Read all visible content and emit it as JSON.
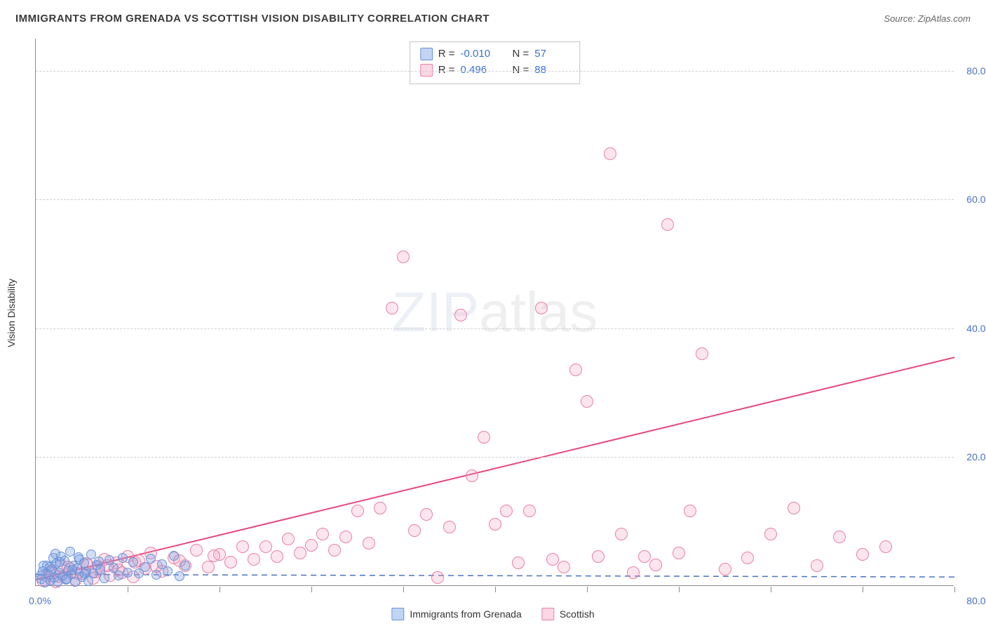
{
  "header": {
    "title": "IMMIGRANTS FROM GRENADA VS SCOTTISH VISION DISABILITY CORRELATION CHART",
    "source_prefix": "Source: ",
    "source_name": "ZipAtlas.com"
  },
  "watermark": {
    "part1": "ZIP",
    "part2": "atlas"
  },
  "chart": {
    "type": "scatter",
    "xlim": [
      0,
      80
    ],
    "ylim": [
      0,
      85
    ],
    "x_unit": "%",
    "y_unit": "%",
    "xlabel": "",
    "ylabel": "Vision Disability",
    "y_ticks": [
      20.0,
      40.0,
      60.0,
      80.0
    ],
    "y_tick_labels": [
      "20.0%",
      "40.0%",
      "60.0%",
      "80.0%"
    ],
    "x_ticks": [
      8,
      16,
      24,
      32,
      40,
      48,
      56,
      64,
      72,
      80
    ],
    "x_origin_label": "0.0%",
    "x_max_label": "80.0%",
    "grid_color": "#d0d0d0",
    "axis_color": "#8a8a8a",
    "tick_font_color": "#4a72c4",
    "background_color": "#ffffff"
  },
  "stats": {
    "series1": {
      "r_label": "R =",
      "r_value": "-0.010",
      "n_label": "N =",
      "n_value": "57"
    },
    "series2": {
      "r_label": "R =",
      "r_value": "0.496",
      "n_label": "N =",
      "n_value": "88"
    }
  },
  "legend": {
    "series1": {
      "label": "Immigrants from Grenada",
      "color_fill": "rgba(120,160,230,0.45)",
      "color_stroke": "#6a93d8"
    },
    "series2": {
      "label": "Scottish",
      "color_fill": "rgba(245,155,185,0.4)",
      "color_stroke": "#e97fa8"
    }
  },
  "series": {
    "blue": {
      "marker_size": 14,
      "fill": "rgba(120,160,230,0.35)",
      "stroke": "#6a93d8",
      "trend": {
        "style": "dashed",
        "color": "#4a72c4",
        "width": 1.5,
        "y_at_x0": 1.8,
        "y_at_xmax": 1.4
      },
      "points": [
        [
          0.5,
          1.0
        ],
        [
          0.6,
          2.2
        ],
        [
          0.8,
          0.4
        ],
        [
          1.0,
          3.0
        ],
        [
          1.1,
          1.6
        ],
        [
          1.3,
          0.8
        ],
        [
          1.4,
          2.5
        ],
        [
          1.5,
          4.2
        ],
        [
          1.6,
          1.2
        ],
        [
          1.8,
          3.4
        ],
        [
          1.9,
          0.6
        ],
        [
          2.0,
          2.0
        ],
        [
          2.2,
          4.5
        ],
        [
          2.3,
          1.4
        ],
        [
          2.5,
          3.8
        ],
        [
          2.6,
          0.9
        ],
        [
          2.8,
          2.3
        ],
        [
          3.0,
          5.2
        ],
        [
          3.1,
          1.7
        ],
        [
          3.3,
          3.0
        ],
        [
          3.4,
          0.5
        ],
        [
          3.6,
          2.6
        ],
        [
          3.8,
          4.0
        ],
        [
          4.0,
          1.3
        ],
        [
          4.2,
          3.5
        ],
        [
          4.4,
          2.1
        ],
        [
          4.6,
          0.7
        ],
        [
          4.8,
          4.8
        ],
        [
          5.0,
          1.8
        ],
        [
          5.3,
          3.2
        ],
        [
          5.6,
          2.4
        ],
        [
          6.0,
          1.1
        ],
        [
          6.4,
          3.9
        ],
        [
          6.8,
          2.7
        ],
        [
          7.2,
          1.5
        ],
        [
          7.6,
          4.3
        ],
        [
          8.0,
          2.0
        ],
        [
          8.5,
          3.6
        ],
        [
          9.0,
          1.9
        ],
        [
          9.5,
          2.8
        ],
        [
          10.0,
          4.1
        ],
        [
          10.5,
          1.6
        ],
        [
          11.0,
          3.3
        ],
        [
          11.5,
          2.2
        ],
        [
          12.0,
          4.6
        ],
        [
          12.5,
          1.4
        ],
        [
          13.0,
          3.0
        ],
        [
          0.4,
          1.5
        ],
        [
          0.7,
          3.1
        ],
        [
          1.2,
          2.8
        ],
        [
          1.7,
          4.9
        ],
        [
          2.1,
          3.6
        ],
        [
          2.7,
          1.0
        ],
        [
          3.2,
          2.4
        ],
        [
          3.7,
          4.4
        ],
        [
          4.3,
          1.9
        ],
        [
          5.5,
          3.7
        ]
      ]
    },
    "pink": {
      "marker_size": 18,
      "fill": "rgba(245,155,185,0.25)",
      "stroke": "#e97fa8",
      "trend": {
        "style": "solid",
        "color": "#e6487e",
        "width": 2,
        "y_at_x0": 1.0,
        "y_at_xmax": 35.5
      },
      "points": [
        [
          0.6,
          0.8
        ],
        [
          1.0,
          1.5
        ],
        [
          1.4,
          2.2
        ],
        [
          1.8,
          0.6
        ],
        [
          2.2,
          3.0
        ],
        [
          2.6,
          1.2
        ],
        [
          3.0,
          2.5
        ],
        [
          3.5,
          0.9
        ],
        [
          4.0,
          1.8
        ],
        [
          4.5,
          3.2
        ],
        [
          5.0,
          1.1
        ],
        [
          5.5,
          2.8
        ],
        [
          6.0,
          4.0
        ],
        [
          6.5,
          1.5
        ],
        [
          7.0,
          3.5
        ],
        [
          7.5,
          2.0
        ],
        [
          8.0,
          4.5
        ],
        [
          8.5,
          1.3
        ],
        [
          9.0,
          3.8
        ],
        [
          9.5,
          2.6
        ],
        [
          10.0,
          5.0
        ],
        [
          11.0,
          2.2
        ],
        [
          12.0,
          4.2
        ],
        [
          13.0,
          3.0
        ],
        [
          14.0,
          5.5
        ],
        [
          15.0,
          2.8
        ],
        [
          16.0,
          4.8
        ],
        [
          17.0,
          3.6
        ],
        [
          18.0,
          6.0
        ],
        [
          19.0,
          4.0
        ],
        [
          20.0,
          6.0
        ],
        [
          21.0,
          4.5
        ],
        [
          22.0,
          7.2
        ],
        [
          23.0,
          5.0
        ],
        [
          24.0,
          6.2
        ],
        [
          25.0,
          8.0
        ],
        [
          26.0,
          5.5
        ],
        [
          27.0,
          7.5
        ],
        [
          28.0,
          11.5
        ],
        [
          29.0,
          6.5
        ],
        [
          30.0,
          12.0
        ],
        [
          31.0,
          43.0
        ],
        [
          32.0,
          51.0
        ],
        [
          33.0,
          8.5
        ],
        [
          34.0,
          11.0
        ],
        [
          35.0,
          1.2
        ],
        [
          36.0,
          9.0
        ],
        [
          37.0,
          42.0
        ],
        [
          38.0,
          17.0
        ],
        [
          39.0,
          23.0
        ],
        [
          40.0,
          9.5
        ],
        [
          41.0,
          11.5
        ],
        [
          42.0,
          3.5
        ],
        [
          43.0,
          11.5
        ],
        [
          44.0,
          43.0
        ],
        [
          45.0,
          4.0
        ],
        [
          46.0,
          2.8
        ],
        [
          47.0,
          33.5
        ],
        [
          48.0,
          28.5
        ],
        [
          49.0,
          4.5
        ],
        [
          50.0,
          67.0
        ],
        [
          51.0,
          8.0
        ],
        [
          52.0,
          2.0
        ],
        [
          53.0,
          4.5
        ],
        [
          54.0,
          3.2
        ],
        [
          55.0,
          56.0
        ],
        [
          56.0,
          5.0
        ],
        [
          57.0,
          11.5
        ],
        [
          58.0,
          36.0
        ],
        [
          60.0,
          2.5
        ],
        [
          62.0,
          4.2
        ],
        [
          64.0,
          8.0
        ],
        [
          66.0,
          12.0
        ],
        [
          68.0,
          3.0
        ],
        [
          70.0,
          7.5
        ],
        [
          72.0,
          4.8
        ],
        [
          74.0,
          6.0
        ],
        [
          1.2,
          2.0
        ],
        [
          2.0,
          1.4
        ],
        [
          2.8,
          2.8
        ],
        [
          3.6,
          1.8
        ],
        [
          4.4,
          3.4
        ],
        [
          5.2,
          2.1
        ],
        [
          6.2,
          3.0
        ],
        [
          7.2,
          2.4
        ],
        [
          8.6,
          3.6
        ],
        [
          10.5,
          2.9
        ],
        [
          12.5,
          3.8
        ],
        [
          15.5,
          4.6
        ]
      ]
    }
  }
}
